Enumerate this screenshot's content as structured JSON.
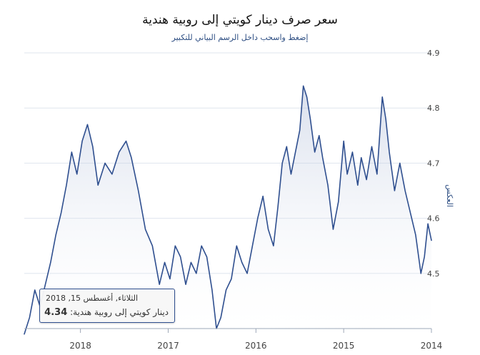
{
  "chart_data": {
    "type": "area",
    "title": "سعر صرف دينار كويتي إلى روبية هندية",
    "subtitle": "إضغط واسحب داخل الرسم البياني للتكبير",
    "xlabel": "",
    "ylabel": "العكس",
    "ylim": [
      4.4,
      4.9
    ],
    "x_axis_ticks": [
      "2014",
      "2015",
      "2016",
      "2017",
      "2018"
    ],
    "y_axis_ticks": [
      "4.5",
      "4.6",
      "4.7",
      "4.8",
      "4.9"
    ],
    "x_reversed": true,
    "grid": true,
    "series": [
      {
        "name": "دينار كويتي إلى روبية هندية",
        "color": "#2f4f8f",
        "points": [
          [
            2014.0,
            4.56
          ],
          [
            2014.04,
            4.59
          ],
          [
            2014.08,
            4.53
          ],
          [
            2014.12,
            4.5
          ],
          [
            2014.18,
            4.57
          ],
          [
            2014.24,
            4.61
          ],
          [
            2014.3,
            4.65
          ],
          [
            2014.36,
            4.7
          ],
          [
            2014.42,
            4.65
          ],
          [
            2014.48,
            4.72
          ],
          [
            2014.52,
            4.78
          ],
          [
            2014.56,
            4.82
          ],
          [
            2014.62,
            4.68
          ],
          [
            2014.68,
            4.73
          ],
          [
            2014.74,
            4.67
          ],
          [
            2014.8,
            4.71
          ],
          [
            2014.84,
            4.66
          ],
          [
            2014.9,
            4.72
          ],
          [
            2014.96,
            4.68
          ],
          [
            2015.0,
            4.74
          ],
          [
            2015.06,
            4.63
          ],
          [
            2015.12,
            4.58
          ],
          [
            2015.18,
            4.66
          ],
          [
            2015.24,
            4.71
          ],
          [
            2015.28,
            4.75
          ],
          [
            2015.33,
            4.72
          ],
          [
            2015.38,
            4.78
          ],
          [
            2015.42,
            4.82
          ],
          [
            2015.46,
            4.84
          ],
          [
            2015.5,
            4.76
          ],
          [
            2015.55,
            4.72
          ],
          [
            2015.6,
            4.68
          ],
          [
            2015.65,
            4.73
          ],
          [
            2015.7,
            4.7
          ],
          [
            2015.75,
            4.62
          ],
          [
            2015.8,
            4.55
          ],
          [
            2015.86,
            4.58
          ],
          [
            2015.92,
            4.64
          ],
          [
            2015.98,
            4.6
          ],
          [
            2016.04,
            4.55
          ],
          [
            2016.1,
            4.5
          ],
          [
            2016.16,
            4.52
          ],
          [
            2016.22,
            4.55
          ],
          [
            2016.28,
            4.49
          ],
          [
            2016.34,
            4.47
          ],
          [
            2016.4,
            4.42
          ],
          [
            2016.45,
            4.4
          ],
          [
            2016.5,
            4.47
          ],
          [
            2016.56,
            4.53
          ],
          [
            2016.62,
            4.55
          ],
          [
            2016.68,
            4.5
          ],
          [
            2016.74,
            4.52
          ],
          [
            2016.8,
            4.48
          ],
          [
            2016.86,
            4.53
          ],
          [
            2016.92,
            4.55
          ],
          [
            2016.98,
            4.49
          ],
          [
            2017.04,
            4.52
          ],
          [
            2017.1,
            4.48
          ],
          [
            2017.18,
            4.55
          ],
          [
            2017.26,
            4.58
          ],
          [
            2017.34,
            4.65
          ],
          [
            2017.42,
            4.71
          ],
          [
            2017.48,
            4.74
          ],
          [
            2017.56,
            4.72
          ],
          [
            2017.64,
            4.68
          ],
          [
            2017.72,
            4.7
          ],
          [
            2017.8,
            4.66
          ],
          [
            2017.86,
            4.73
          ],
          [
            2017.92,
            4.77
          ],
          [
            2017.98,
            4.74
          ],
          [
            2018.04,
            4.68
          ],
          [
            2018.1,
            4.72
          ],
          [
            2018.16,
            4.66
          ],
          [
            2018.22,
            4.61
          ],
          [
            2018.28,
            4.57
          ],
          [
            2018.34,
            4.52
          ],
          [
            2018.4,
            4.48
          ],
          [
            2018.46,
            4.44
          ],
          [
            2018.52,
            4.47
          ],
          [
            2018.58,
            4.42
          ],
          [
            2018.64,
            4.39
          ]
        ]
      }
    ],
    "tooltip": {
      "date": "الثلاثاء, أغسطس 15, 2018",
      "series_label": "دينار كويتي إلى روبية هندية",
      "value": "4.34"
    }
  }
}
